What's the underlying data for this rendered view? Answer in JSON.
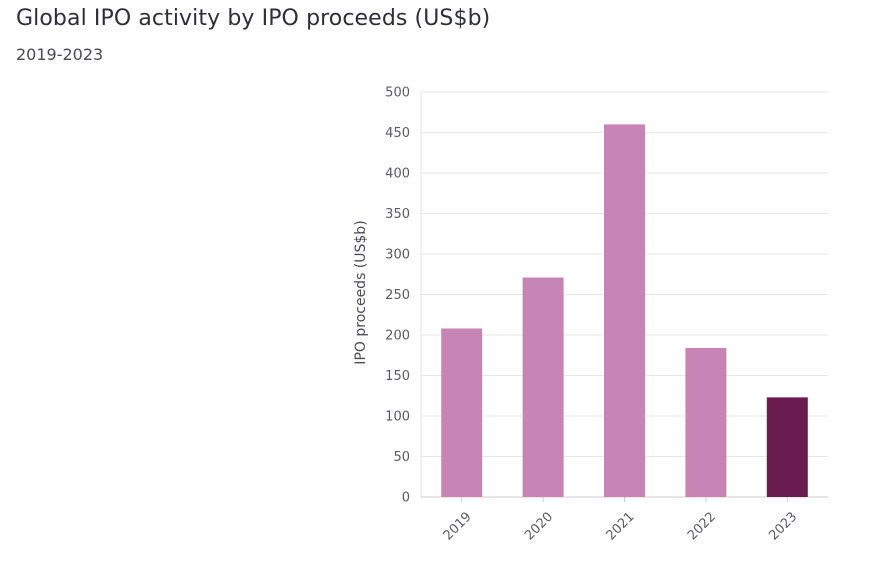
{
  "title": "Global IPO activity by IPO proceeds (US$b)",
  "subtitle": "2019-2023",
  "colors": {
    "bar": "#c785b5",
    "highlight": "#6a1b50",
    "grid": "#e6e6e6",
    "axis": "#cccccc"
  },
  "chart_data": {
    "type": "bar",
    "title": "Global IPO activity by IPO proceeds (US$b)",
    "subtitle": "2019-2023",
    "categories": [
      "2019",
      "2020",
      "2021",
      "2022",
      "2023"
    ],
    "values": [
      208,
      271,
      460,
      184,
      123
    ],
    "highlight_index": 4,
    "xlabel": "",
    "ylabel": "IPO proceeds (US$b)",
    "ylim": [
      0,
      500
    ],
    "yticks": [
      0,
      50,
      100,
      150,
      200,
      250,
      300,
      350,
      400,
      450,
      500
    ],
    "grid": true
  }
}
